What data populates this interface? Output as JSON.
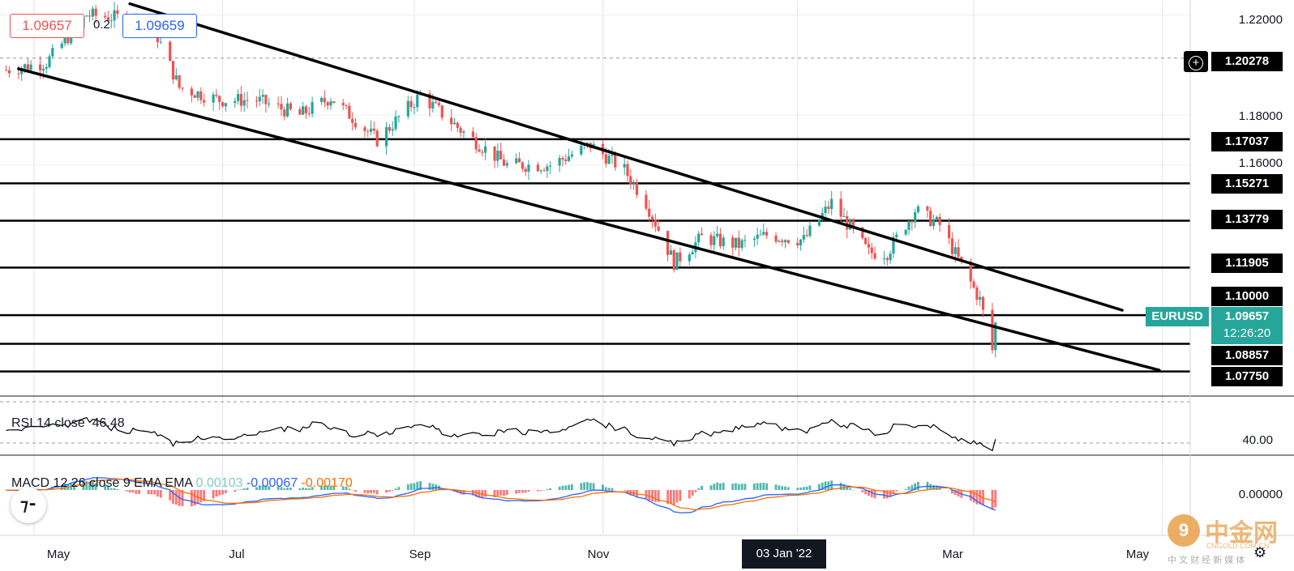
{
  "symbol": "EURUSD",
  "header": {
    "bid": "1.09657",
    "spread": "0.2",
    "ask": "1.09659"
  },
  "price_axis": {
    "ticks": [
      "1.22000",
      "1.18000",
      "1.16000"
    ],
    "level_labels": [
      "1.20278",
      "1.17037",
      "1.15271",
      "1.13779",
      "1.11905",
      "1.10000",
      "1.08857",
      "1.07750"
    ],
    "last_price": "1.09657",
    "countdown": "12:26:20"
  },
  "x_axis": {
    "labels": [
      "May",
      "Jul",
      "Sep",
      "Nov",
      "03 Jan '22",
      "Mar",
      "May"
    ],
    "highlight": "03 Jan '22"
  },
  "rsi": {
    "title": "RSI 14 close",
    "value": "46.48",
    "tick": "40.00"
  },
  "macd": {
    "title": "MACD 12 26 close 9 EMA EMA",
    "hist_value": "0.00103",
    "macd_value": "-0.00067",
    "signal_value": "-0.00170",
    "tick": "0.00000"
  },
  "watermark": {
    "name": "中金网",
    "url": "CNGOLD.COM.CN",
    "tagline": "中 文 财 经 新 媒 体"
  },
  "colors": {
    "up": "#26a69a",
    "down": "#ef5350",
    "macd_line": "#2962ff",
    "signal_line": "#ff6d00",
    "rsi_line": "#000000",
    "tag_bg": "#26a69a",
    "watermark": "#e8a14a"
  },
  "chart_data": {
    "type": "candlestick",
    "instrument": "EURUSD",
    "x_range": [
      "2021-04-20",
      "2022-05-10"
    ],
    "y_range": [
      1.068,
      1.226
    ],
    "horizontal_levels": [
      1.20278,
      1.17037,
      1.15271,
      1.13779,
      1.11905,
      1.1,
      1.08857,
      1.0775
    ],
    "trend_lines": [
      {
        "from": [
          "2021-06-01",
          1.2245
        ],
        "to": [
          "2022-04-18",
          1.102
        ]
      },
      {
        "from": [
          "2021-04-26",
          1.1985
        ],
        "to": [
          "2022-04-30",
          1.078
        ]
      }
    ],
    "close_path": [
      [
        "2021-04-22",
        1.198
      ],
      [
        "2021-05-05",
        1.201
      ],
      [
        "2021-05-18",
        1.22
      ],
      [
        "2021-05-28",
        1.219
      ],
      [
        "2021-06-08",
        1.217
      ],
      [
        "2021-06-17",
        1.191
      ],
      [
        "2021-06-30",
        1.186
      ],
      [
        "2021-07-12",
        1.186
      ],
      [
        "2021-07-26",
        1.18
      ],
      [
        "2021-08-05",
        1.187
      ],
      [
        "2021-08-20",
        1.17
      ],
      [
        "2021-09-03",
        1.188
      ],
      [
        "2021-09-17",
        1.173
      ],
      [
        "2021-10-01",
        1.16
      ],
      [
        "2021-10-15",
        1.16
      ],
      [
        "2021-10-28",
        1.168
      ],
      [
        "2021-11-08",
        1.158
      ],
      [
        "2021-11-15",
        1.145
      ],
      [
        "2021-11-24",
        1.121
      ],
      [
        "2021-12-03",
        1.131
      ],
      [
        "2021-12-15",
        1.128
      ],
      [
        "2021-12-24",
        1.132
      ],
      [
        "2022-01-05",
        1.13
      ],
      [
        "2022-01-14",
        1.145
      ],
      [
        "2022-01-26",
        1.125
      ],
      [
        "2022-02-01",
        1.125
      ],
      [
        "2022-02-10",
        1.142
      ],
      [
        "2022-02-18",
        1.136
      ],
      [
        "2022-02-25",
        1.12
      ],
      [
        "2022-03-03",
        1.106
      ],
      [
        "2022-03-07",
        1.086
      ],
      [
        "2022-03-08",
        1.0966
      ]
    ],
    "rsi_series": {
      "name": "RSI 14 close",
      "last": 46.48,
      "tick": 40.0
    },
    "macd_series": {
      "macd": -0.00067,
      "signal": -0.0017,
      "histogram": 0.00103
    },
    "grid": true
  }
}
